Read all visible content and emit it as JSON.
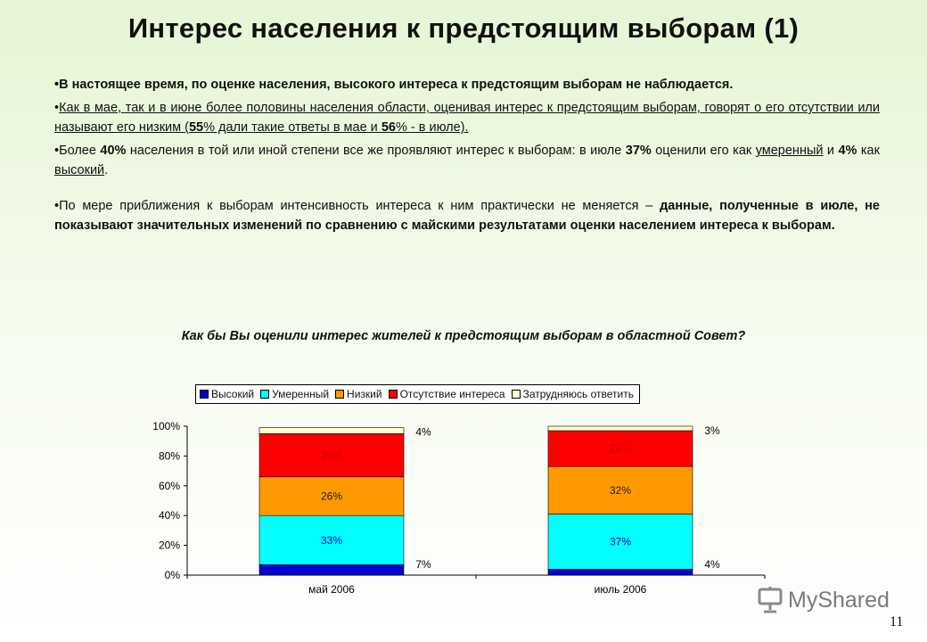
{
  "slide": {
    "title": "Интерес населения к предстоящим выборам (1)",
    "page_number": "11",
    "logo_text": "MyShared"
  },
  "bullets": {
    "b1": "В настоящее время, по оценке населения, высокого интереса к предстоящим выборам не наблюдается.",
    "b2_part1": "Как в мае, так и в июне более половины населения области, оценивая интерес к предстоящим выборам, говорят о его отсутствии или называют его низким (",
    "b2_v1": "55",
    "b2_part2": "% дали такие ответы в мае и ",
    "b2_v2": "56",
    "b2_part3": "% - в июле).",
    "b3_part1": "Более ",
    "b3_v1": "40%",
    "b3_part2": " населения в той или иной степени все же проявляют интерес к выборам: в июле ",
    "b3_v2": "37%",
    "b3_part3": " оценили его как ",
    "b3_link1": "умеренный",
    "b3_part4": " и ",
    "b3_v3": "4%",
    "b3_part5": " как ",
    "b3_link2": "высокий",
    "b3_part6": ".",
    "b4_part1": "По мере приближения к выборам интенсивность интереса к ним практически не меняется – ",
    "b4_part2": "данные, полученные в июле, не показывают значительных изменений по сравнению с майскими результатами оценки населением интереса к выборам."
  },
  "chart_data": {
    "type": "bar",
    "stacked": true,
    "percent": true,
    "title": "Как бы Вы оценили интерес жителей к предстоящим выборам в областной Совет?",
    "categories": [
      "май 2006",
      "июль 2006"
    ],
    "series": [
      {
        "name": "Высокий",
        "values": [
          7,
          4
        ],
        "color": "#0000cc"
      },
      {
        "name": "Умеренный",
        "values": [
          33,
          37
        ],
        "color": "#00ffff"
      },
      {
        "name": "Низкий",
        "values": [
          26,
          32
        ],
        "color": "#ff9900"
      },
      {
        "name": "Отсутствие интереса",
        "values": [
          29,
          24
        ],
        "color": "#ff0000"
      },
      {
        "name": "Затрудняюсь ответить",
        "values": [
          4,
          3
        ],
        "color": "#ffffcc"
      }
    ],
    "data_labels": [
      [
        "7%",
        "4%"
      ],
      [
        "33%",
        "37%"
      ],
      [
        "26%",
        "32%"
      ],
      [
        "29%",
        "24%"
      ],
      [
        "4%",
        "3%"
      ]
    ],
    "yticks": [
      "0%",
      "20%",
      "40%",
      "60%",
      "80%",
      "100%"
    ],
    "ylim": [
      0,
      100
    ],
    "legend_position": "top"
  }
}
